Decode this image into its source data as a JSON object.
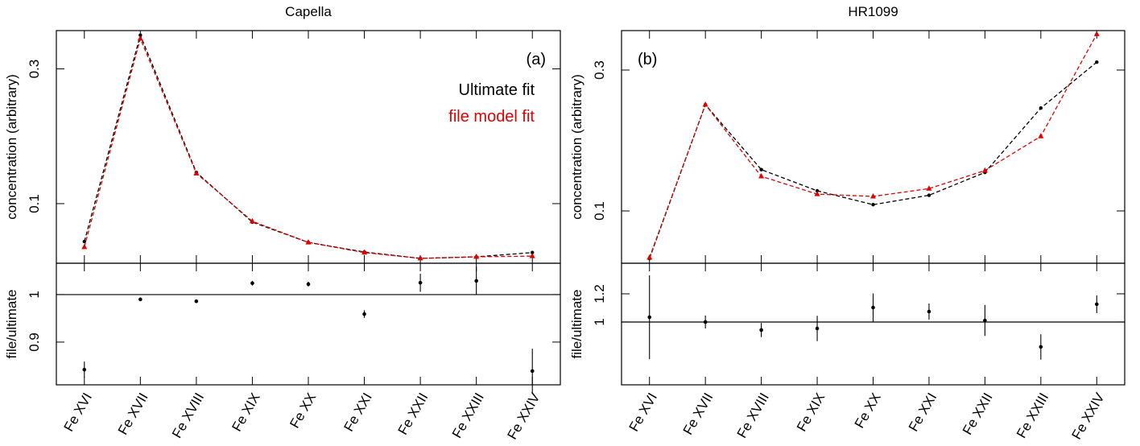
{
  "chart_data": [
    {
      "type": "line",
      "title": "Capella",
      "ylabel": "concentration (arbitrary)",
      "log_y": true,
      "annotation": "(a)",
      "annotation_corner": "upper right",
      "legend": true,
      "legend_corner": "upper right",
      "categories": [
        "Fe XVI",
        "Fe XVII",
        "Fe XVIII",
        "Fe XIX",
        "Fe XX",
        "Fe XXI",
        "Fe XXII",
        "Fe XXIII",
        "Fe XXIV"
      ],
      "series": [
        {
          "name": "Ultimate fit",
          "color": "#000000",
          "marker": "circle",
          "values": [
            0.0734,
            0.395,
            0.129,
            0.086,
            0.0729,
            0.0674,
            0.064,
            0.0648,
            0.0671
          ]
        },
        {
          "name": "file model fit",
          "color": "#e00000",
          "marker": "triangle",
          "values": [
            0.0702,
            0.384,
            0.128,
            0.0866,
            0.0729,
            0.0671,
            0.064,
            0.0648,
            0.0652
          ]
        }
      ],
      "ylim": [
        0.0615,
        0.41
      ],
      "yticks": [
        0.1,
        0.3
      ],
      "ratio": {
        "ylabel": "file/ultimate",
        "reference": 1,
        "ylim": [
          0.81,
          1.066
        ],
        "yticks": [
          0.9,
          1
        ],
        "values": [
          0.842,
          0.99,
          0.986,
          1.024,
          1.022,
          0.959,
          1.025,
          1.029,
          0.839
        ],
        "errors": [
          0.017,
          0.003,
          0.003,
          0.005,
          0.005,
          0.008,
          0.019,
          0.03,
          0.047
        ]
      }
    },
    {
      "type": "line",
      "title": "HR1099",
      "ylabel": "concentration (arbitrary)",
      "log_y": true,
      "annotation": "(b)",
      "annotation_corner": "upper left",
      "legend": false,
      "categories": [
        "Fe XVI",
        "Fe XVII",
        "Fe XVIII",
        "Fe XIX",
        "Fe XX",
        "Fe XXI",
        "Fe XXII",
        "Fe XXIII",
        "Fe XXIV"
      ],
      "series": [
        {
          "color": "#000000",
          "marker": "circle",
          "values": [
            0.069,
            0.229,
            0.138,
            0.117,
            0.105,
            0.113,
            0.135,
            0.223,
            0.319
          ]
        },
        {
          "color": "#e00000",
          "marker": "triangle",
          "values": [
            0.0695,
            0.229,
            0.131,
            0.114,
            0.112,
            0.119,
            0.137,
            0.179,
            0.397
          ]
        }
      ],
      "ylim": [
        0.0665,
        0.408
      ],
      "yticks": [
        0.1,
        0.3
      ],
      "ratio": {
        "ylabel": "file/ultimate",
        "reference": 1,
        "ylim": [
          0.554,
          1.417
        ],
        "yticks": [
          1,
          1.2
        ],
        "values": [
          1.034,
          1.0,
          0.943,
          0.954,
          1.103,
          1.074,
          1.011,
          0.823,
          1.126
        ],
        "errors": [
          0.297,
          0.046,
          0.05,
          0.09,
          0.1,
          0.057,
          0.11,
          0.09,
          0.063
        ]
      }
    }
  ]
}
